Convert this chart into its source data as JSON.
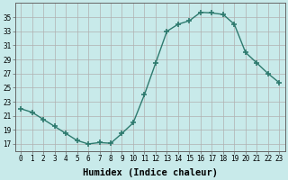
{
  "x": [
    0,
    1,
    2,
    3,
    4,
    5,
    6,
    7,
    8,
    9,
    10,
    11,
    12,
    13,
    14,
    15,
    16,
    17,
    18,
    19,
    20,
    21,
    22,
    23
  ],
  "y": [
    22.0,
    21.5,
    20.5,
    19.5,
    18.5,
    17.5,
    17.0,
    17.2,
    17.1,
    18.5,
    20.0,
    24.0,
    28.5,
    33.0,
    34.0,
    34.5,
    35.7,
    35.6,
    35.4,
    34.0,
    30.0,
    28.5,
    27.0,
    25.7
  ],
  "line_color": "#2d7a6e",
  "marker": "+",
  "marker_size": 4,
  "marker_lw": 1.2,
  "bg_color": "#c8eaea",
  "grid_color_major": "#b0b0b0",
  "grid_color_minor": "#d0d8d8",
  "xlabel": "Humidex (Indice chaleur)",
  "xlim": [
    -0.5,
    23.5
  ],
  "ylim": [
    16,
    37
  ],
  "yticks": [
    17,
    19,
    21,
    23,
    25,
    27,
    29,
    31,
    33,
    35
  ],
  "xticks": [
    0,
    1,
    2,
    3,
    4,
    5,
    6,
    7,
    8,
    9,
    10,
    11,
    12,
    13,
    14,
    15,
    16,
    17,
    18,
    19,
    20,
    21,
    22,
    23
  ],
  "tick_labelsize": 5.5,
  "xlabel_fontsize": 7.5,
  "line_width": 1.0
}
